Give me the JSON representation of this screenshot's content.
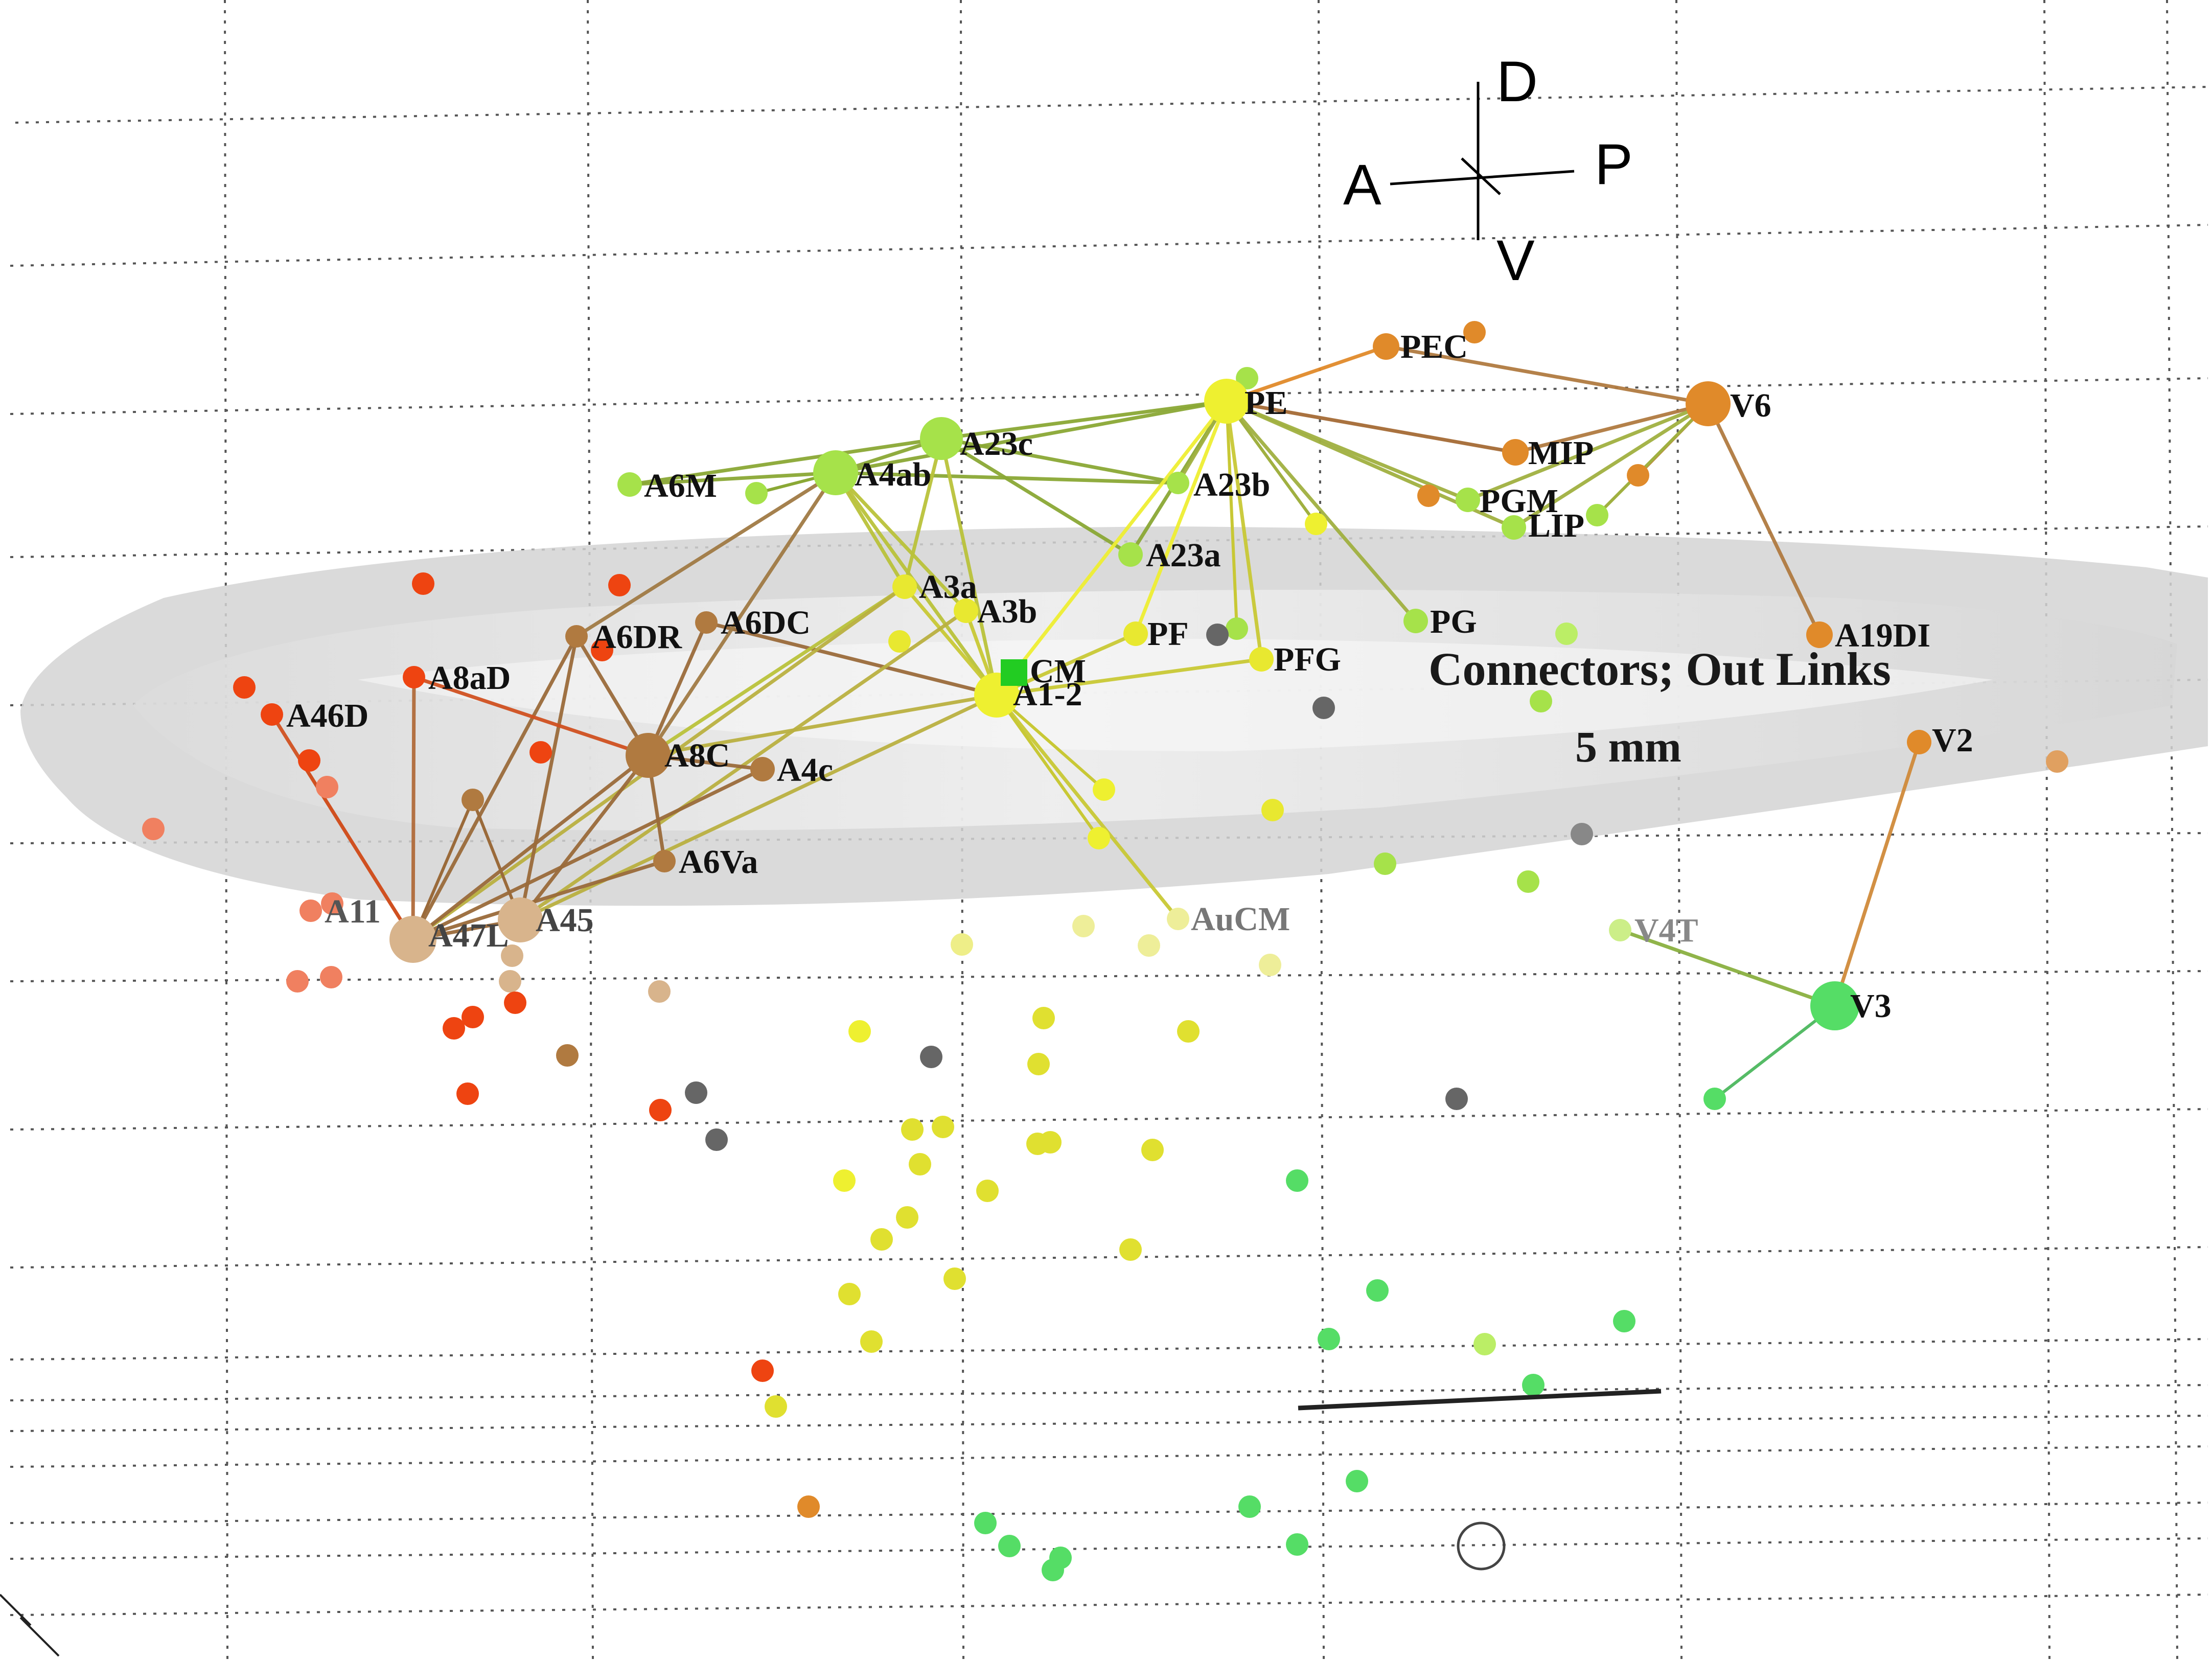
{
  "title": "Connectors; Out Links",
  "scale_bar_label": "5 mm",
  "orientation": {
    "anterior": "A",
    "posterior": "P",
    "dorsal": "D",
    "ventral": "V"
  },
  "colors": {
    "background": "#ffffff",
    "grid": "#555555",
    "cortex_surface": "#d8d8d8",
    "seed_node": "#22cc22",
    "frontal_red": "#ee4411",
    "frontal_brown": "#b07a40",
    "prefrontal_tan": "#d8b48c",
    "parietal_green": "#a6e24a",
    "somatosensory_yellow": "#e8e830",
    "occipital_orange": "#e08a2a",
    "visual_green": "#55dd66",
    "unassigned_gray": "#666666"
  },
  "seed": {
    "label": "CM",
    "color": "#22cc22"
  },
  "nodes": [
    {
      "id": "A6M",
      "label": "A6M",
      "color": "#a6e24a"
    },
    {
      "id": "A4ab",
      "label": "A4ab",
      "color": "#a6e24a"
    },
    {
      "id": "A23c",
      "label": "A23c",
      "color": "#a6e24a"
    },
    {
      "id": "PE",
      "label": "PE",
      "color": "#eef030"
    },
    {
      "id": "PEC",
      "label": "PEC",
      "color": "#e08a2a"
    },
    {
      "id": "V6",
      "label": "V6",
      "color": "#e08a2a"
    },
    {
      "id": "MIP",
      "label": "MIP",
      "color": "#e08a2a"
    },
    {
      "id": "PGM",
      "label": "PGM",
      "color": "#a6e24a"
    },
    {
      "id": "LIP",
      "label": "LIP",
      "color": "#a6e24a"
    },
    {
      "id": "A23b",
      "label": "A23b",
      "color": "#a6e24a"
    },
    {
      "id": "A23a",
      "label": "A23a",
      "color": "#a6e24a"
    },
    {
      "id": "A3a",
      "label": "A3a",
      "color": "#e8e830"
    },
    {
      "id": "A3b",
      "label": "A3b",
      "color": "#e8e830"
    },
    {
      "id": "PF",
      "label": "PF",
      "color": "#e8e830"
    },
    {
      "id": "PFG",
      "label": "PFG",
      "color": "#e8e830"
    },
    {
      "id": "PG",
      "label": "PG",
      "color": "#a6e24a"
    },
    {
      "id": "A1-2",
      "label": "A1-2",
      "color": "#eef030"
    },
    {
      "id": "A19DI",
      "label": "A19DI",
      "color": "#e08a2a"
    },
    {
      "id": "V2",
      "label": "V2",
      "color": "#e08a2a"
    },
    {
      "id": "A6DR",
      "label": "A6DR",
      "color": "#b07a40"
    },
    {
      "id": "A6DC",
      "label": "A6DC",
      "color": "#b07a40"
    },
    {
      "id": "A8aD",
      "label": "A8aD",
      "color": "#ee4411"
    },
    {
      "id": "A46D",
      "label": "A46D",
      "color": "#ee4411"
    },
    {
      "id": "A8C",
      "label": "A8C",
      "color": "#b07a40"
    },
    {
      "id": "A4c",
      "label": "A4c",
      "color": "#b07a40"
    },
    {
      "id": "A6Va",
      "label": "A6Va",
      "color": "#b07a40"
    },
    {
      "id": "A11",
      "label": "A11",
      "color": "#f08060"
    },
    {
      "id": "A47L",
      "label": "A47L",
      "color": "#d8b48c"
    },
    {
      "id": "A45",
      "label": "A45",
      "color": "#d8b48c"
    },
    {
      "id": "AuCM",
      "label": "AuCM",
      "color": "#eeee99"
    },
    {
      "id": "V4T",
      "label": "V4T",
      "color": "#ccee88"
    },
    {
      "id": "V3",
      "label": "V3",
      "color": "#55dd66"
    }
  ]
}
